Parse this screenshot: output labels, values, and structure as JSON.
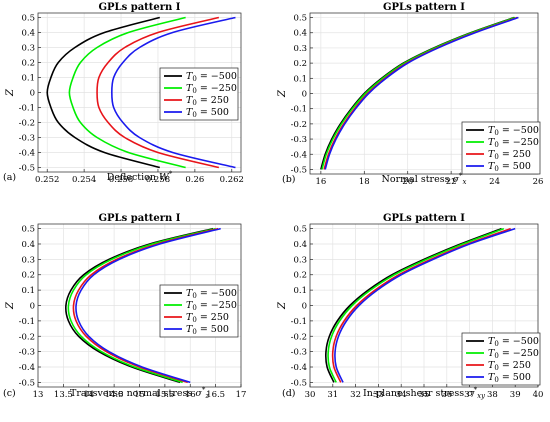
{
  "colors": {
    "black": "#000000",
    "green": "#00ee00",
    "red": "#e8141a",
    "blue": "#1a1aee"
  },
  "series_names": [
    "T0 = −500",
    "T0 = −250",
    "T0 = 250",
    "T0 = 500"
  ],
  "chart_data": [
    {
      "type": "line",
      "panel": "(a)",
      "title": "GPLs pattern I",
      "xlabel": "Deflection W*",
      "ylabel": "Z",
      "xlim": [
        0.2515,
        0.2625
      ],
      "ylim": [
        -0.53,
        0.53
      ],
      "xticks": [
        0.252,
        0.254,
        0.256,
        0.258,
        0.26,
        0.262
      ],
      "xticklabels": [
        "0.252",
        "0.254",
        "0.256",
        "0.258",
        "0.26",
        "0.262"
      ],
      "yticks": [
        0.5,
        0.4,
        0.3,
        0.2,
        0.1,
        0,
        -0.1,
        -0.2,
        -0.3,
        -0.4,
        -0.5
      ],
      "yticklabels": [
        "0.5",
        "0.4",
        "0.3",
        "0.2",
        "0.1",
        "0",
        "-0.1",
        "-0.2",
        "-0.3",
        "-0.4",
        "-0.5"
      ],
      "grid": true,
      "legend_position": "center-right",
      "series": [
        {
          "name": "T0 = −500",
          "color": "black",
          "z": [
            -0.5,
            -0.4,
            -0.3,
            -0.2,
            -0.1,
            0,
            0.1,
            0.2,
            0.3,
            0.4,
            0.5
          ],
          "x": [
            0.2581,
            0.2551,
            0.2535,
            0.2526,
            0.2522,
            0.252,
            0.2522,
            0.2526,
            0.2535,
            0.2551,
            0.2581
          ]
        },
        {
          "name": "T0 = −250",
          "color": "green",
          "z": [
            -0.5,
            -0.4,
            -0.3,
            -0.2,
            -0.1,
            0,
            0.1,
            0.2,
            0.3,
            0.4,
            0.5
          ],
          "x": [
            0.2595,
            0.2564,
            0.2547,
            0.2538,
            0.2534,
            0.2532,
            0.2534,
            0.2538,
            0.2547,
            0.2564,
            0.2595
          ]
        },
        {
          "name": "T0 = 250",
          "color": "red",
          "z": [
            -0.5,
            -0.4,
            -0.3,
            -0.2,
            -0.1,
            0,
            0.1,
            0.2,
            0.3,
            0.4,
            0.5
          ],
          "x": [
            0.2613,
            0.258,
            0.2562,
            0.2553,
            0.2548,
            0.2547,
            0.2548,
            0.2553,
            0.2562,
            0.258,
            0.2613
          ]
        },
        {
          "name": "T0 = 500",
          "color": "blue",
          "z": [
            -0.5,
            -0.4,
            -0.3,
            -0.2,
            -0.1,
            0,
            0.1,
            0.2,
            0.3,
            0.4,
            0.5
          ],
          "x": [
            0.2622,
            0.2588,
            0.257,
            0.2561,
            0.2556,
            0.2555,
            0.2556,
            0.2561,
            0.257,
            0.2588,
            0.2622
          ]
        }
      ]
    },
    {
      "type": "line",
      "panel": "(b)",
      "title": "GPLs pattern I",
      "xlabel": "Normal stress σx*",
      "ylabel": "Z",
      "xlim": [
        15.5,
        26
      ],
      "ylim": [
        -0.53,
        0.53
      ],
      "xticks": [
        16,
        18,
        20,
        22,
        24,
        26
      ],
      "xticklabels": [
        "16",
        "18",
        "20",
        "22",
        "24",
        "26"
      ],
      "yticks": [
        0.5,
        0.4,
        0.3,
        0.2,
        0.1,
        0,
        -0.1,
        -0.2,
        -0.3,
        -0.4,
        -0.5
      ],
      "yticklabels": [
        "0.5",
        "0.4",
        "0.3",
        "0.2",
        "0.1",
        "0",
        "-0.1",
        "-0.2",
        "-0.3",
        "-0.4",
        "-0.5"
      ],
      "grid": true,
      "legend_position": "bottom-right",
      "series": [
        {
          "name": "T0 = −500",
          "color": "black",
          "z": [
            -0.5,
            -0.4,
            -0.3,
            -0.2,
            -0.1,
            0,
            0.1,
            0.2,
            0.3,
            0.4,
            0.5
          ],
          "x": [
            16.0,
            16.2,
            16.5,
            16.9,
            17.4,
            18.0,
            18.8,
            19.8,
            21.2,
            22.9,
            24.9
          ]
        },
        {
          "name": "T0 = −250",
          "color": "green",
          "z": [
            -0.5,
            -0.4,
            -0.3,
            -0.2,
            -0.1,
            0,
            0.1,
            0.2,
            0.3,
            0.4,
            0.5
          ],
          "x": [
            16.05,
            16.25,
            16.55,
            16.95,
            17.45,
            18.05,
            18.85,
            19.85,
            21.25,
            22.95,
            24.95
          ]
        },
        {
          "name": "T0 = 250",
          "color": "red",
          "z": [
            -0.5,
            -0.4,
            -0.3,
            -0.2,
            -0.1,
            0,
            0.1,
            0.2,
            0.3,
            0.4,
            0.5
          ],
          "x": [
            16.15,
            16.35,
            16.65,
            17.05,
            17.55,
            18.15,
            18.95,
            19.95,
            21.35,
            23.05,
            25.05
          ]
        },
        {
          "name": "T0 = 500",
          "color": "blue",
          "z": [
            -0.5,
            -0.4,
            -0.3,
            -0.2,
            -0.1,
            0,
            0.1,
            0.2,
            0.3,
            0.4,
            0.5
          ],
          "x": [
            16.2,
            16.4,
            16.7,
            17.1,
            17.6,
            18.2,
            19.0,
            20.0,
            21.4,
            23.1,
            25.1
          ]
        }
      ]
    },
    {
      "type": "line",
      "panel": "(c)",
      "title": "GPLs pattern I",
      "xlabel": "Transverse normal stress σz*",
      "ylabel": "Z",
      "xlim": [
        13,
        17
      ],
      "ylim": [
        -0.53,
        0.53
      ],
      "xticks": [
        13,
        13.5,
        14,
        14.5,
        15,
        15.5,
        16,
        16.5,
        17
      ],
      "xticklabels": [
        "13",
        "13.5",
        "14",
        "14.5",
        "15",
        "15.5",
        "16",
        "16.5",
        "17"
      ],
      "yticks": [
        0.5,
        0.4,
        0.3,
        0.2,
        0.1,
        0,
        -0.1,
        -0.2,
        -0.3,
        -0.4,
        -0.5
      ],
      "yticklabels": [
        "0.5",
        "0.4",
        "0.3",
        "0.2",
        "0.1",
        "0",
        "-0.1",
        "-0.2",
        "-0.3",
        "-0.4",
        "-0.5"
      ],
      "grid": true,
      "legend_position": "center-right",
      "series": [
        {
          "name": "T0 = −500",
          "color": "black",
          "z": [
            -0.5,
            -0.4,
            -0.3,
            -0.2,
            -0.1,
            0,
            0.1,
            0.2,
            0.3,
            0.4,
            0.5
          ],
          "x": [
            15.8,
            14.85,
            14.2,
            13.8,
            13.6,
            13.55,
            13.65,
            13.9,
            14.4,
            15.2,
            16.45
          ]
        },
        {
          "name": "T0 = −250",
          "color": "green",
          "z": [
            -0.5,
            -0.4,
            -0.3,
            -0.2,
            -0.1,
            0,
            0.1,
            0.2,
            0.3,
            0.4,
            0.5
          ],
          "x": [
            15.85,
            14.9,
            14.25,
            13.85,
            13.65,
            13.6,
            13.7,
            13.95,
            14.45,
            15.25,
            16.5
          ]
        },
        {
          "name": "T0 = 250",
          "color": "red",
          "z": [
            -0.5,
            -0.4,
            -0.3,
            -0.2,
            -0.1,
            0,
            0.1,
            0.2,
            0.3,
            0.4,
            0.5
          ],
          "x": [
            15.95,
            15.0,
            14.35,
            13.95,
            13.75,
            13.7,
            13.8,
            14.05,
            14.55,
            15.35,
            16.55
          ]
        },
        {
          "name": "T0 = 500",
          "color": "blue",
          "z": [
            -0.5,
            -0.4,
            -0.3,
            -0.2,
            -0.1,
            0,
            0.1,
            0.2,
            0.3,
            0.4,
            0.5
          ],
          "x": [
            16.0,
            15.05,
            14.4,
            14.0,
            13.8,
            13.75,
            13.85,
            14.1,
            14.6,
            15.4,
            16.6
          ]
        }
      ]
    },
    {
      "type": "line",
      "panel": "(d)",
      "title": "GPLs pattern I",
      "xlabel": "In-plane shear stress σxy*",
      "ylabel": "Z",
      "xlim": [
        30,
        40
      ],
      "ylim": [
        -0.53,
        0.53
      ],
      "xticks": [
        30,
        31,
        32,
        33,
        34,
        35,
        36,
        37,
        38,
        39,
        40
      ],
      "xticklabels": [
        "30",
        "31",
        "32",
        "33",
        "34",
        "35",
        "36",
        "37",
        "38",
        "39",
        "40"
      ],
      "yticks": [
        0.5,
        0.4,
        0.3,
        0.2,
        0.1,
        0,
        -0.1,
        -0.2,
        -0.3,
        -0.4,
        -0.5
      ],
      "yticklabels": [
        "0.5",
        "0.4",
        "0.3",
        "0.2",
        "0.1",
        "0",
        "-0.1",
        "-0.2",
        "-0.3",
        "-0.4",
        "-0.5"
      ],
      "grid": true,
      "legend_position": "bottom-right",
      "series": [
        {
          "name": "T0 = −500",
          "color": "black",
          "z": [
            -0.5,
            -0.4,
            -0.3,
            -0.2,
            -0.1,
            0,
            0.1,
            0.2,
            0.3,
            0.4,
            0.5
          ],
          "x": [
            31.05,
            30.75,
            30.7,
            30.85,
            31.2,
            31.75,
            32.55,
            33.6,
            35.0,
            36.6,
            38.4
          ]
        },
        {
          "name": "T0 = −250",
          "color": "green",
          "z": [
            -0.5,
            -0.4,
            -0.3,
            -0.2,
            -0.1,
            0,
            0.1,
            0.2,
            0.3,
            0.4,
            0.5
          ],
          "x": [
            31.15,
            30.85,
            30.8,
            30.95,
            31.3,
            31.85,
            32.65,
            33.7,
            35.1,
            36.7,
            38.5
          ]
        },
        {
          "name": "T0 = 250",
          "color": "red",
          "z": [
            -0.5,
            -0.4,
            -0.3,
            -0.2,
            -0.1,
            0,
            0.1,
            0.2,
            0.3,
            0.4,
            0.5
          ],
          "x": [
            31.35,
            31.05,
            31.0,
            31.15,
            31.5,
            32.05,
            32.85,
            33.9,
            35.3,
            36.9,
            38.8
          ]
        },
        {
          "name": "T0 = 500",
          "color": "blue",
          "z": [
            -0.5,
            -0.4,
            -0.3,
            -0.2,
            -0.1,
            0,
            0.1,
            0.2,
            0.3,
            0.4,
            0.5
          ],
          "x": [
            31.45,
            31.15,
            31.1,
            31.25,
            31.6,
            32.15,
            32.95,
            34.0,
            35.4,
            37.0,
            39.0
          ]
        }
      ]
    }
  ]
}
